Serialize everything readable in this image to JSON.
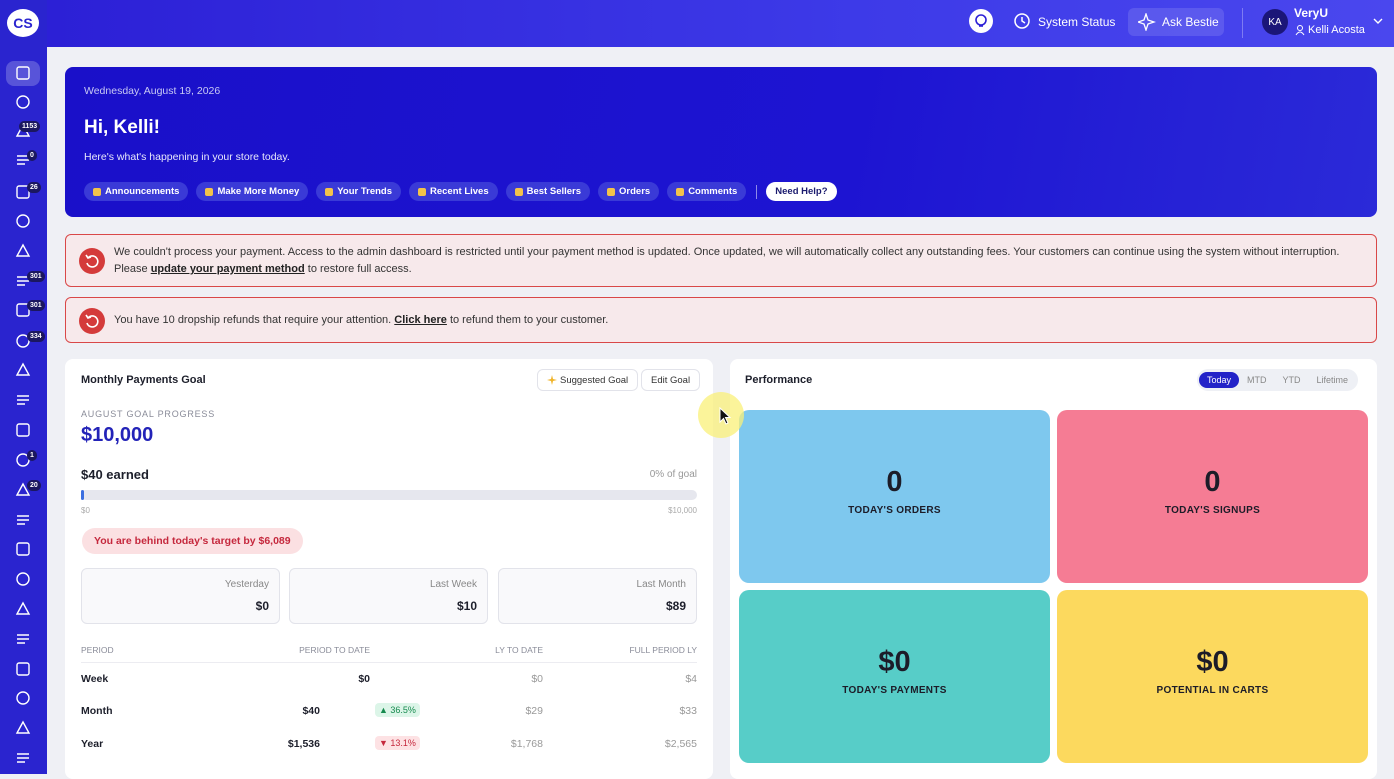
{
  "logo": "CS",
  "topbar": {
    "system_status": "System Status",
    "ask": "Ask Bestie",
    "avatar": "KA",
    "org": "VeryU",
    "user": "Kelli Acosta"
  },
  "sidebar": {
    "badges": [
      "1153",
      "0",
      "26",
      "301",
      "301",
      "334",
      "1",
      "20"
    ]
  },
  "hero": {
    "date": "Wednesday, August 19, 2026",
    "greeting": "Hi, Kelli!",
    "subtitle": "Here's what's happening in your store today.",
    "links": [
      "Announcements",
      "Make More Money",
      "Your Trends",
      "Recent Lives",
      "Best Sellers",
      "Orders",
      "Comments"
    ],
    "help": "Need Help?"
  },
  "alerts": [
    {
      "before": "We couldn't process your payment. Access to the admin dashboard is restricted until your payment method is updated. Once updated, we will automatically collect any outstanding fees. Your customers can continue using the system without interruption. Please ",
      "link": "update your payment method",
      "after": " to restore full access."
    },
    {
      "before": "You have 10 dropship refunds that require your attention. ",
      "link": "Click here",
      "after": " to refund them to your customer."
    }
  ],
  "goal": {
    "title": "Monthly Payments Goal",
    "buttons": [
      "Suggested Goal",
      "Edit Goal"
    ],
    "progress_label": "AUGUST GOAL PROGRESS",
    "target": "$10,000",
    "earned": "$40 earned",
    "percent": "0% of goal",
    "scale_min": "$0",
    "scale_max": "$10,000",
    "behind": "You are behind today's target by $6,089",
    "periods": [
      {
        "label": "Yesterday",
        "value": "$0"
      },
      {
        "label": "Last Week",
        "value": "$10"
      },
      {
        "label": "Last Month",
        "value": "$89"
      }
    ],
    "table": {
      "header": [
        "PERIOD",
        "PERIOD TO DATE",
        "LY TO DATE",
        "FULL PERIOD LY"
      ],
      "rows": [
        {
          "period": "Week",
          "to_date": "$0",
          "ly_to_date": "$0",
          "full_ly": "$4"
        },
        {
          "period": "Month",
          "to_date": "$40",
          "change": "▲ 36.5%",
          "direction": "up",
          "ly_to_date": "$29",
          "full_ly": "$33"
        },
        {
          "period": "Year",
          "to_date": "$1,536",
          "change": "▼ 13.1%",
          "direction": "down",
          "ly_to_date": "$1,768",
          "full_ly": "$2,565"
        }
      ]
    }
  },
  "performance": {
    "title": "Performance",
    "tabs": [
      "Today",
      "MTD",
      "YTD",
      "Lifetime"
    ],
    "active_tab": 0,
    "tiles": [
      {
        "value": "0",
        "label": "TODAY'S ORDERS",
        "color": "#7ec8ee"
      },
      {
        "value": "0",
        "label": "TODAY'S SIGNUPS",
        "color": "#f57c94"
      },
      {
        "value": "$0",
        "label": "TODAY'S PAYMENTS",
        "color": "#57cdc8"
      },
      {
        "value": "$0",
        "label": "POTENTIAL IN CARTS",
        "color": "#fcd95e"
      }
    ]
  }
}
